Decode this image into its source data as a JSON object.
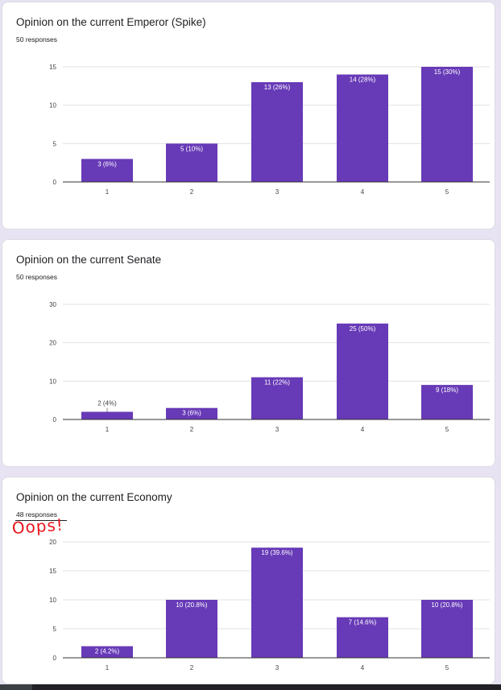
{
  "cards": [
    {
      "title": "Opinion on the current Emperor (Spike)",
      "subtitle": "50 responses"
    },
    {
      "title": "Opinion on the current Senate",
      "subtitle": "50 responses"
    },
    {
      "title": "Opinion on the current Economy",
      "subtitle": "48 responses"
    }
  ],
  "annotation": {
    "text": "Oops!",
    "color": "#e8161e"
  },
  "colors": {
    "bar": "#673ab7",
    "grid": "#e0e0e0",
    "axis": "#333333",
    "background": "#e8e3f3"
  },
  "chart_data": [
    {
      "type": "bar",
      "title": "Opinion on the current Emperor (Spike)",
      "categories": [
        "1",
        "2",
        "3",
        "4",
        "5"
      ],
      "values": [
        3,
        5,
        13,
        14,
        15
      ],
      "labels": [
        "3 (6%)",
        "5 (10%)",
        "13 (26%)",
        "14 (28%)",
        "15 (30%)"
      ],
      "yticks": [
        0,
        5,
        10,
        15
      ],
      "ylim": [
        0,
        15
      ],
      "grid": true
    },
    {
      "type": "bar",
      "title": "Opinion on the current Senate",
      "categories": [
        "1",
        "2",
        "3",
        "4",
        "5"
      ],
      "values": [
        2,
        3,
        11,
        25,
        9
      ],
      "labels": [
        "2 (4%)",
        "3 (6%)",
        "11 (22%)",
        "25 (50%)",
        "9 (18%)"
      ],
      "yticks": [
        0,
        10,
        20,
        30
      ],
      "ylim": [
        0,
        30
      ],
      "grid": true
    },
    {
      "type": "bar",
      "title": "Opinion on the current Economy",
      "categories": [
        "1",
        "2",
        "3",
        "4",
        "5"
      ],
      "values": [
        2,
        10,
        19,
        7,
        10
      ],
      "labels": [
        "2 (4.2%)",
        "10 (20.8%)",
        "19 (39.6%)",
        "7 (14.6%)",
        "10 (20.8%)"
      ],
      "yticks": [
        0,
        5,
        10,
        15,
        20
      ],
      "ylim": [
        0,
        20
      ],
      "grid": true
    }
  ]
}
